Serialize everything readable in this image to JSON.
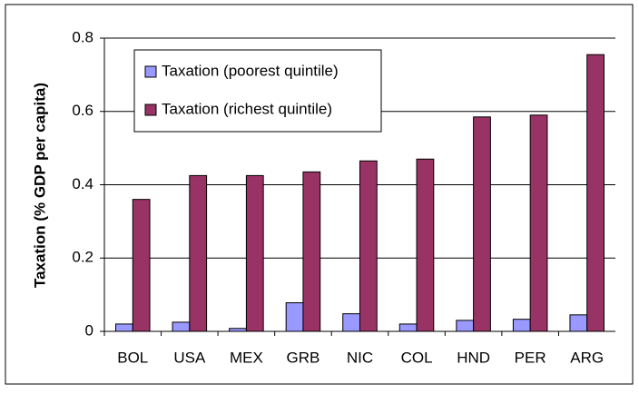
{
  "chart_data": {
    "type": "bar",
    "y_label": "Taxation (% GDP per capita)",
    "categories": [
      "BOL",
      "USA",
      "MEX",
      "GRB",
      "NIC",
      "COL",
      "HND",
      "PER",
      "ARG"
    ],
    "series": [
      {
        "name": "Taxation (poorest quintile)",
        "color": "#9999ff",
        "values": [
          0.02,
          0.025,
          0.008,
          0.078,
          0.048,
          0.02,
          0.03,
          0.033,
          0.045
        ]
      },
      {
        "name": "Taxation (richest quintile)",
        "color": "#993366",
        "values": [
          0.36,
          0.425,
          0.425,
          0.435,
          0.465,
          0.47,
          0.585,
          0.59,
          0.755
        ]
      }
    ],
    "ylim": [
      0,
      0.8
    ],
    "yticks": [
      0,
      0.2,
      0.4,
      0.6,
      0.8
    ],
    "grid": true,
    "legend": "upper-left"
  }
}
